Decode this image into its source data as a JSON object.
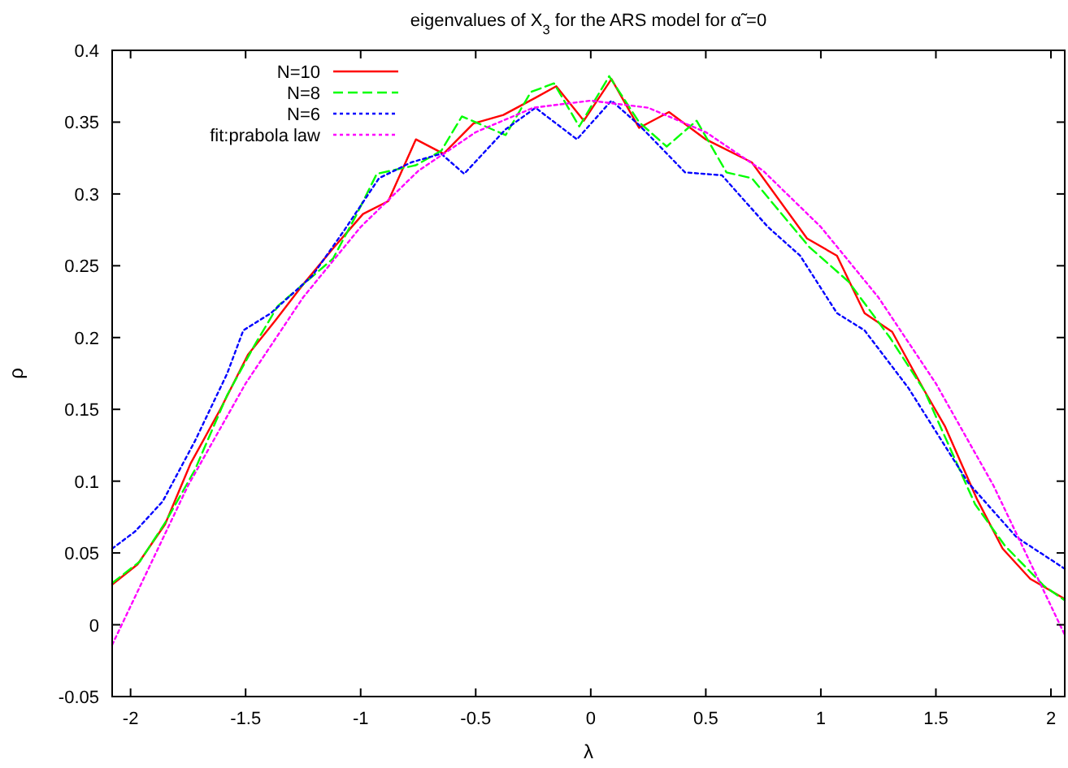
{
  "chart_data": {
    "type": "line",
    "title": "eigenvalues of X$_{3}$ for the ARS model for α̃ =0",
    "xlabel": "λ",
    "ylabel": "ρ",
    "xlim": [
      -2.08,
      2.06
    ],
    "ylim": [
      -0.05,
      0.4
    ],
    "xticks": [
      -2,
      -1.5,
      -1,
      -0.5,
      0,
      0.5,
      1,
      1.5,
      2
    ],
    "yticks": [
      -0.05,
      0,
      0.05,
      0.1,
      0.15,
      0.2,
      0.25,
      0.3,
      0.35,
      0.4
    ],
    "grid": false,
    "legend": "top left",
    "series": [
      {
        "name": "N=10",
        "color": "#ff0000",
        "line_style": "solid",
        "x": [
          -2.08,
          -1.97,
          -1.85,
          -1.74,
          -1.61,
          -1.49,
          -1.37,
          -1.25,
          -1.12,
          -0.99,
          -0.88,
          -0.76,
          -0.64,
          -0.51,
          -0.38,
          -0.24,
          -0.15,
          -0.03,
          0.09,
          0.21,
          0.34,
          0.5,
          0.7,
          0.94,
          1.07,
          1.19,
          1.31,
          1.45,
          1.54,
          1.68,
          1.79,
          1.91,
          2.06
        ],
        "values": [
          0.028,
          0.042,
          0.07,
          0.112,
          0.15,
          0.188,
          0.212,
          0.237,
          0.262,
          0.286,
          0.295,
          0.338,
          0.328,
          0.349,
          0.355,
          0.367,
          0.375,
          0.351,
          0.38,
          0.346,
          0.357,
          0.338,
          0.322,
          0.269,
          0.257,
          0.217,
          0.204,
          0.163,
          0.138,
          0.087,
          0.053,
          0.032,
          0.018
        ]
      },
      {
        "name": "N=8",
        "color": "#00ff00",
        "line_style": "dashed",
        "x": [
          -2.08,
          -1.96,
          -1.85,
          -1.72,
          -1.58,
          -1.46,
          -1.36,
          -1.25,
          -1.12,
          -1.02,
          -0.93,
          -0.76,
          -0.65,
          -0.56,
          -0.37,
          -0.26,
          -0.16,
          -0.05,
          0.08,
          0.21,
          0.33,
          0.46,
          0.59,
          0.7,
          0.95,
          1.12,
          1.3,
          1.45,
          1.67,
          1.8,
          1.97,
          2.06
        ],
        "values": [
          0.029,
          0.044,
          0.071,
          0.108,
          0.16,
          0.195,
          0.222,
          0.237,
          0.255,
          0.285,
          0.314,
          0.32,
          0.33,
          0.354,
          0.341,
          0.371,
          0.377,
          0.347,
          0.382,
          0.35,
          0.333,
          0.351,
          0.315,
          0.311,
          0.263,
          0.239,
          0.2,
          0.163,
          0.084,
          0.055,
          0.027,
          0.017
        ]
      },
      {
        "name": "N=6",
        "color": "#0000ff",
        "line_style": "dotted",
        "x": [
          -2.08,
          -1.98,
          -1.86,
          -1.72,
          -1.58,
          -1.51,
          -1.39,
          -1.21,
          -1.07,
          -0.92,
          -0.78,
          -0.65,
          -0.55,
          -0.37,
          -0.24,
          -0.06,
          0.09,
          0.21,
          0.41,
          0.57,
          0.77,
          0.91,
          1.07,
          1.19,
          1.38,
          1.64,
          1.85,
          2.06
        ],
        "values": [
          0.053,
          0.065,
          0.086,
          0.128,
          0.175,
          0.205,
          0.217,
          0.243,
          0.275,
          0.311,
          0.322,
          0.328,
          0.314,
          0.345,
          0.36,
          0.338,
          0.365,
          0.348,
          0.315,
          0.313,
          0.277,
          0.257,
          0.217,
          0.205,
          0.165,
          0.099,
          0.061,
          0.039
        ]
      },
      {
        "name": "fit:prabola law",
        "color": "#ff00ff",
        "line_style": "dotted",
        "x": [
          -2.08,
          -1.75,
          -1.5,
          -1.25,
          -1,
          -0.75,
          -0.5,
          -0.25,
          0,
          0.25,
          0.5,
          0.75,
          1,
          1.25,
          1.5,
          1.75,
          2.06
        ],
        "values": [
          -0.014,
          0.097,
          0.168,
          0.228,
          0.277,
          0.316,
          0.343,
          0.36,
          0.365,
          0.36,
          0.343,
          0.316,
          0.277,
          0.228,
          0.168,
          0.097,
          -0.007
        ]
      }
    ]
  }
}
